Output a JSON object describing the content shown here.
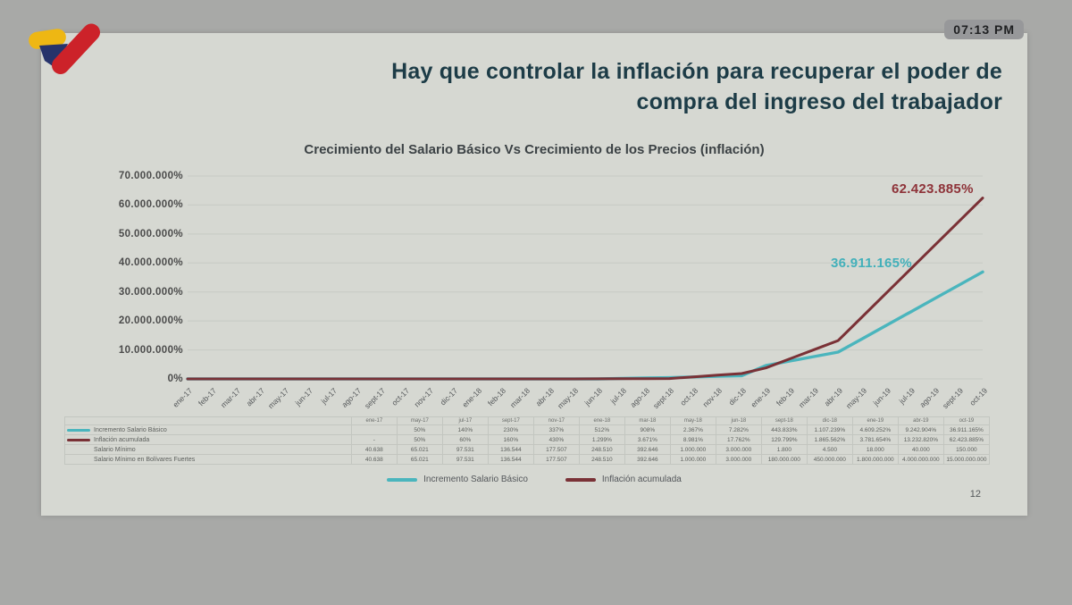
{
  "status_bar": {
    "time": "07:13 PM"
  },
  "logo": {
    "name": "VTV",
    "colors": {
      "yellow": "#eeb713",
      "blue": "#26336b",
      "red": "#cc2229"
    }
  },
  "slide": {
    "title_line1": "Hay que controlar la inflación para recuperar el poder de",
    "title_line2": "compra del ingreso del trabajador",
    "page_number": "12"
  },
  "chart_data": {
    "type": "line",
    "title": "Crecimiento del Salario Básico Vs Crecimiento de los Precios (inflación)",
    "x_labels": [
      "ene-17",
      "feb-17",
      "mar-17",
      "abr-17",
      "may-17",
      "jun-17",
      "jul-17",
      "ago-17",
      "sept-17",
      "oct-17",
      "nov-17",
      "dic-17",
      "ene-18",
      "feb-18",
      "mar-18",
      "abr-18",
      "may-18",
      "jun-18",
      "jul-18",
      "ago-18",
      "sept-18",
      "oct-18",
      "nov-18",
      "dic-18",
      "ene-19",
      "feb-19",
      "mar-19",
      "abr-19",
      "may-19",
      "jun-19",
      "jul-19",
      "ago-19",
      "sept-19",
      "oct-19"
    ],
    "ylim": [
      0,
      70000000
    ],
    "y_tick_labels": [
      "0%",
      "10.000.000%",
      "20.000.000%",
      "30.000.000%",
      "40.000.000%",
      "50.000.000%",
      "60.000.000%",
      "70.000.000%"
    ],
    "grid": true,
    "legend_position": "bottom",
    "series": [
      {
        "name": "Incremento Salario Básico",
        "color": "#4ab5bd",
        "label_color": "#42b0ba",
        "end_label": "36.911.165%",
        "points": [
          [
            "ene-17",
            0
          ],
          [
            "may-17",
            50
          ],
          [
            "jul-17",
            140
          ],
          [
            "sept-17",
            230
          ],
          [
            "nov-17",
            337
          ],
          [
            "ene-18",
            512
          ],
          [
            "mar-18",
            908
          ],
          [
            "may-18",
            2367
          ],
          [
            "jun-18",
            7282
          ],
          [
            "sept-18",
            443833
          ],
          [
            "dic-18",
            1107239
          ],
          [
            "ene-19",
            4609252
          ],
          [
            "abr-19",
            9242904
          ],
          [
            "oct-19",
            36911165
          ]
        ]
      },
      {
        "name": "Inflación acumulada",
        "color": "#7a3136",
        "label_color": "#8e3339",
        "end_label": "62.423.885%",
        "points": [
          [
            "ene-17",
            0
          ],
          [
            "may-17",
            50
          ],
          [
            "jul-17",
            60
          ],
          [
            "sept-17",
            160
          ],
          [
            "nov-17",
            430
          ],
          [
            "ene-18",
            1299
          ],
          [
            "mar-18",
            3671
          ],
          [
            "may-18",
            8981
          ],
          [
            "jun-18",
            17762
          ],
          [
            "sept-18",
            129799
          ],
          [
            "dic-18",
            1865562
          ],
          [
            "ene-19",
            3781654
          ],
          [
            "abr-19",
            13232820
          ],
          [
            "oct-19",
            62423885
          ]
        ]
      }
    ]
  },
  "table": {
    "columns": [
      "ene-17",
      "may-17",
      "jul-17",
      "sept-17",
      "nov-17",
      "ene-18",
      "mar-18",
      "may-18",
      "jun-18",
      "sept-18",
      "dic-18",
      "ene-19",
      "abr-19",
      "oct-19"
    ],
    "rows": [
      {
        "label": "Incremento Salario Básico",
        "swatch": "#4ab5bd",
        "values": [
          "",
          "50%",
          "140%",
          "230%",
          "337%",
          "512%",
          "908%",
          "2.367%",
          "7.282%",
          "443.833%",
          "1.107.239%",
          "4.609.252%",
          "9.242.904%",
          "36.911.165%"
        ]
      },
      {
        "label": "Inflación acumulada",
        "swatch": "#7a3136",
        "values": [
          "-",
          "50%",
          "60%",
          "160%",
          "430%",
          "1.299%",
          "3.671%",
          "8.981%",
          "17.762%",
          "129.799%",
          "1.865.562%",
          "3.781.654%",
          "13.232.820%",
          "62.423.885%"
        ]
      },
      {
        "label": "Salario Mínimo",
        "swatch": "",
        "values": [
          "40.638",
          "65.021",
          "97.531",
          "136.544",
          "177.507",
          "248.510",
          "392.646",
          "1.000.000",
          "3.000.000",
          "1.800",
          "4.500",
          "18.000",
          "40.000",
          "150.000"
        ]
      },
      {
        "label": "Salario Mínimo en Bolívares Fuertes",
        "swatch": "",
        "values": [
          "40.638",
          "65.021",
          "97.531",
          "136.544",
          "177.507",
          "248.510",
          "392.646",
          "1.000.000",
          "3.000.000",
          "180.000.000",
          "450.000.000",
          "1.800.000.000",
          "4.000.000.000",
          "15.000.000.000"
        ]
      }
    ]
  }
}
